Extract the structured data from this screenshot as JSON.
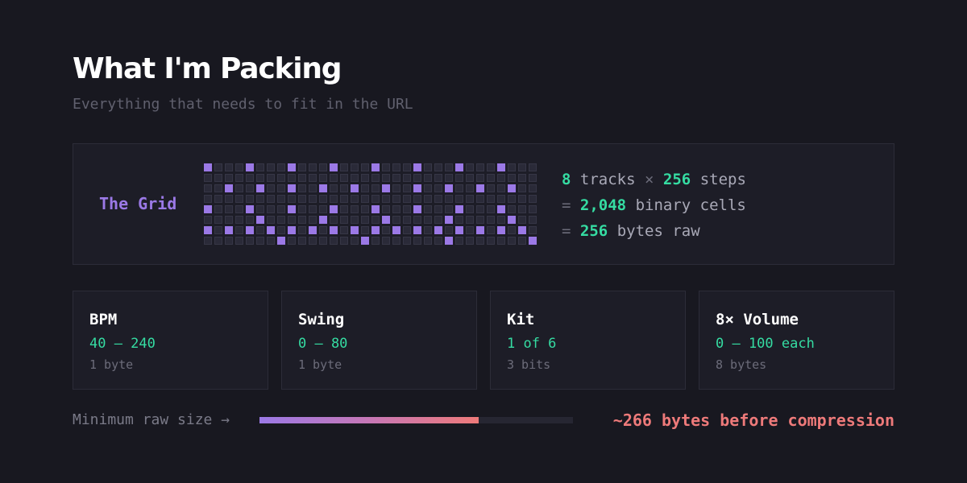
{
  "header": {
    "title": "What I'm Packing",
    "subtitle": "Everything that needs to fit in the URL"
  },
  "grid_section": {
    "label": "The Grid",
    "columns": 32,
    "rows": [
      "10001000100010001000100010001000",
      "00000000000000000000000000000000",
      "00100100100100100100100100100100",
      "00000000000000000000000000000000",
      "10001000100010001000100010001000",
      "00000100000100000100000100000100",
      "10101010101010101010101010101010",
      "00000001000000010000000100000001"
    ],
    "stats": {
      "line1": {
        "tracks": "8",
        "tracks_label": "tracks",
        "times": "×",
        "steps": "256",
        "steps_label": "steps"
      },
      "line2": {
        "eq": "=",
        "cells": "2,048",
        "cells_label": "binary cells"
      },
      "line3": {
        "eq": "=",
        "bytes": "256",
        "bytes_label": "bytes raw"
      }
    }
  },
  "params": [
    {
      "name": "BPM",
      "range": "40 – 240",
      "size": "1 byte"
    },
    {
      "name": "Swing",
      "range": "0 – 80",
      "size": "1 byte"
    },
    {
      "name": "Kit",
      "range": "1 of 6",
      "size": "3 bits"
    },
    {
      "name": "8× Volume",
      "range": "0 – 100 each",
      "size": "8 bytes"
    }
  ],
  "footer": {
    "label": "Minimum raw size →",
    "fill_fraction": 0.7,
    "value": "~266 bytes before compression"
  },
  "colors": {
    "background": "#181820",
    "card": "#1d1d27",
    "accent_purple": "#9b79e6",
    "accent_green": "#35dca2",
    "accent_coral": "#ee7a7a",
    "cell_off": "#2a2a38"
  }
}
